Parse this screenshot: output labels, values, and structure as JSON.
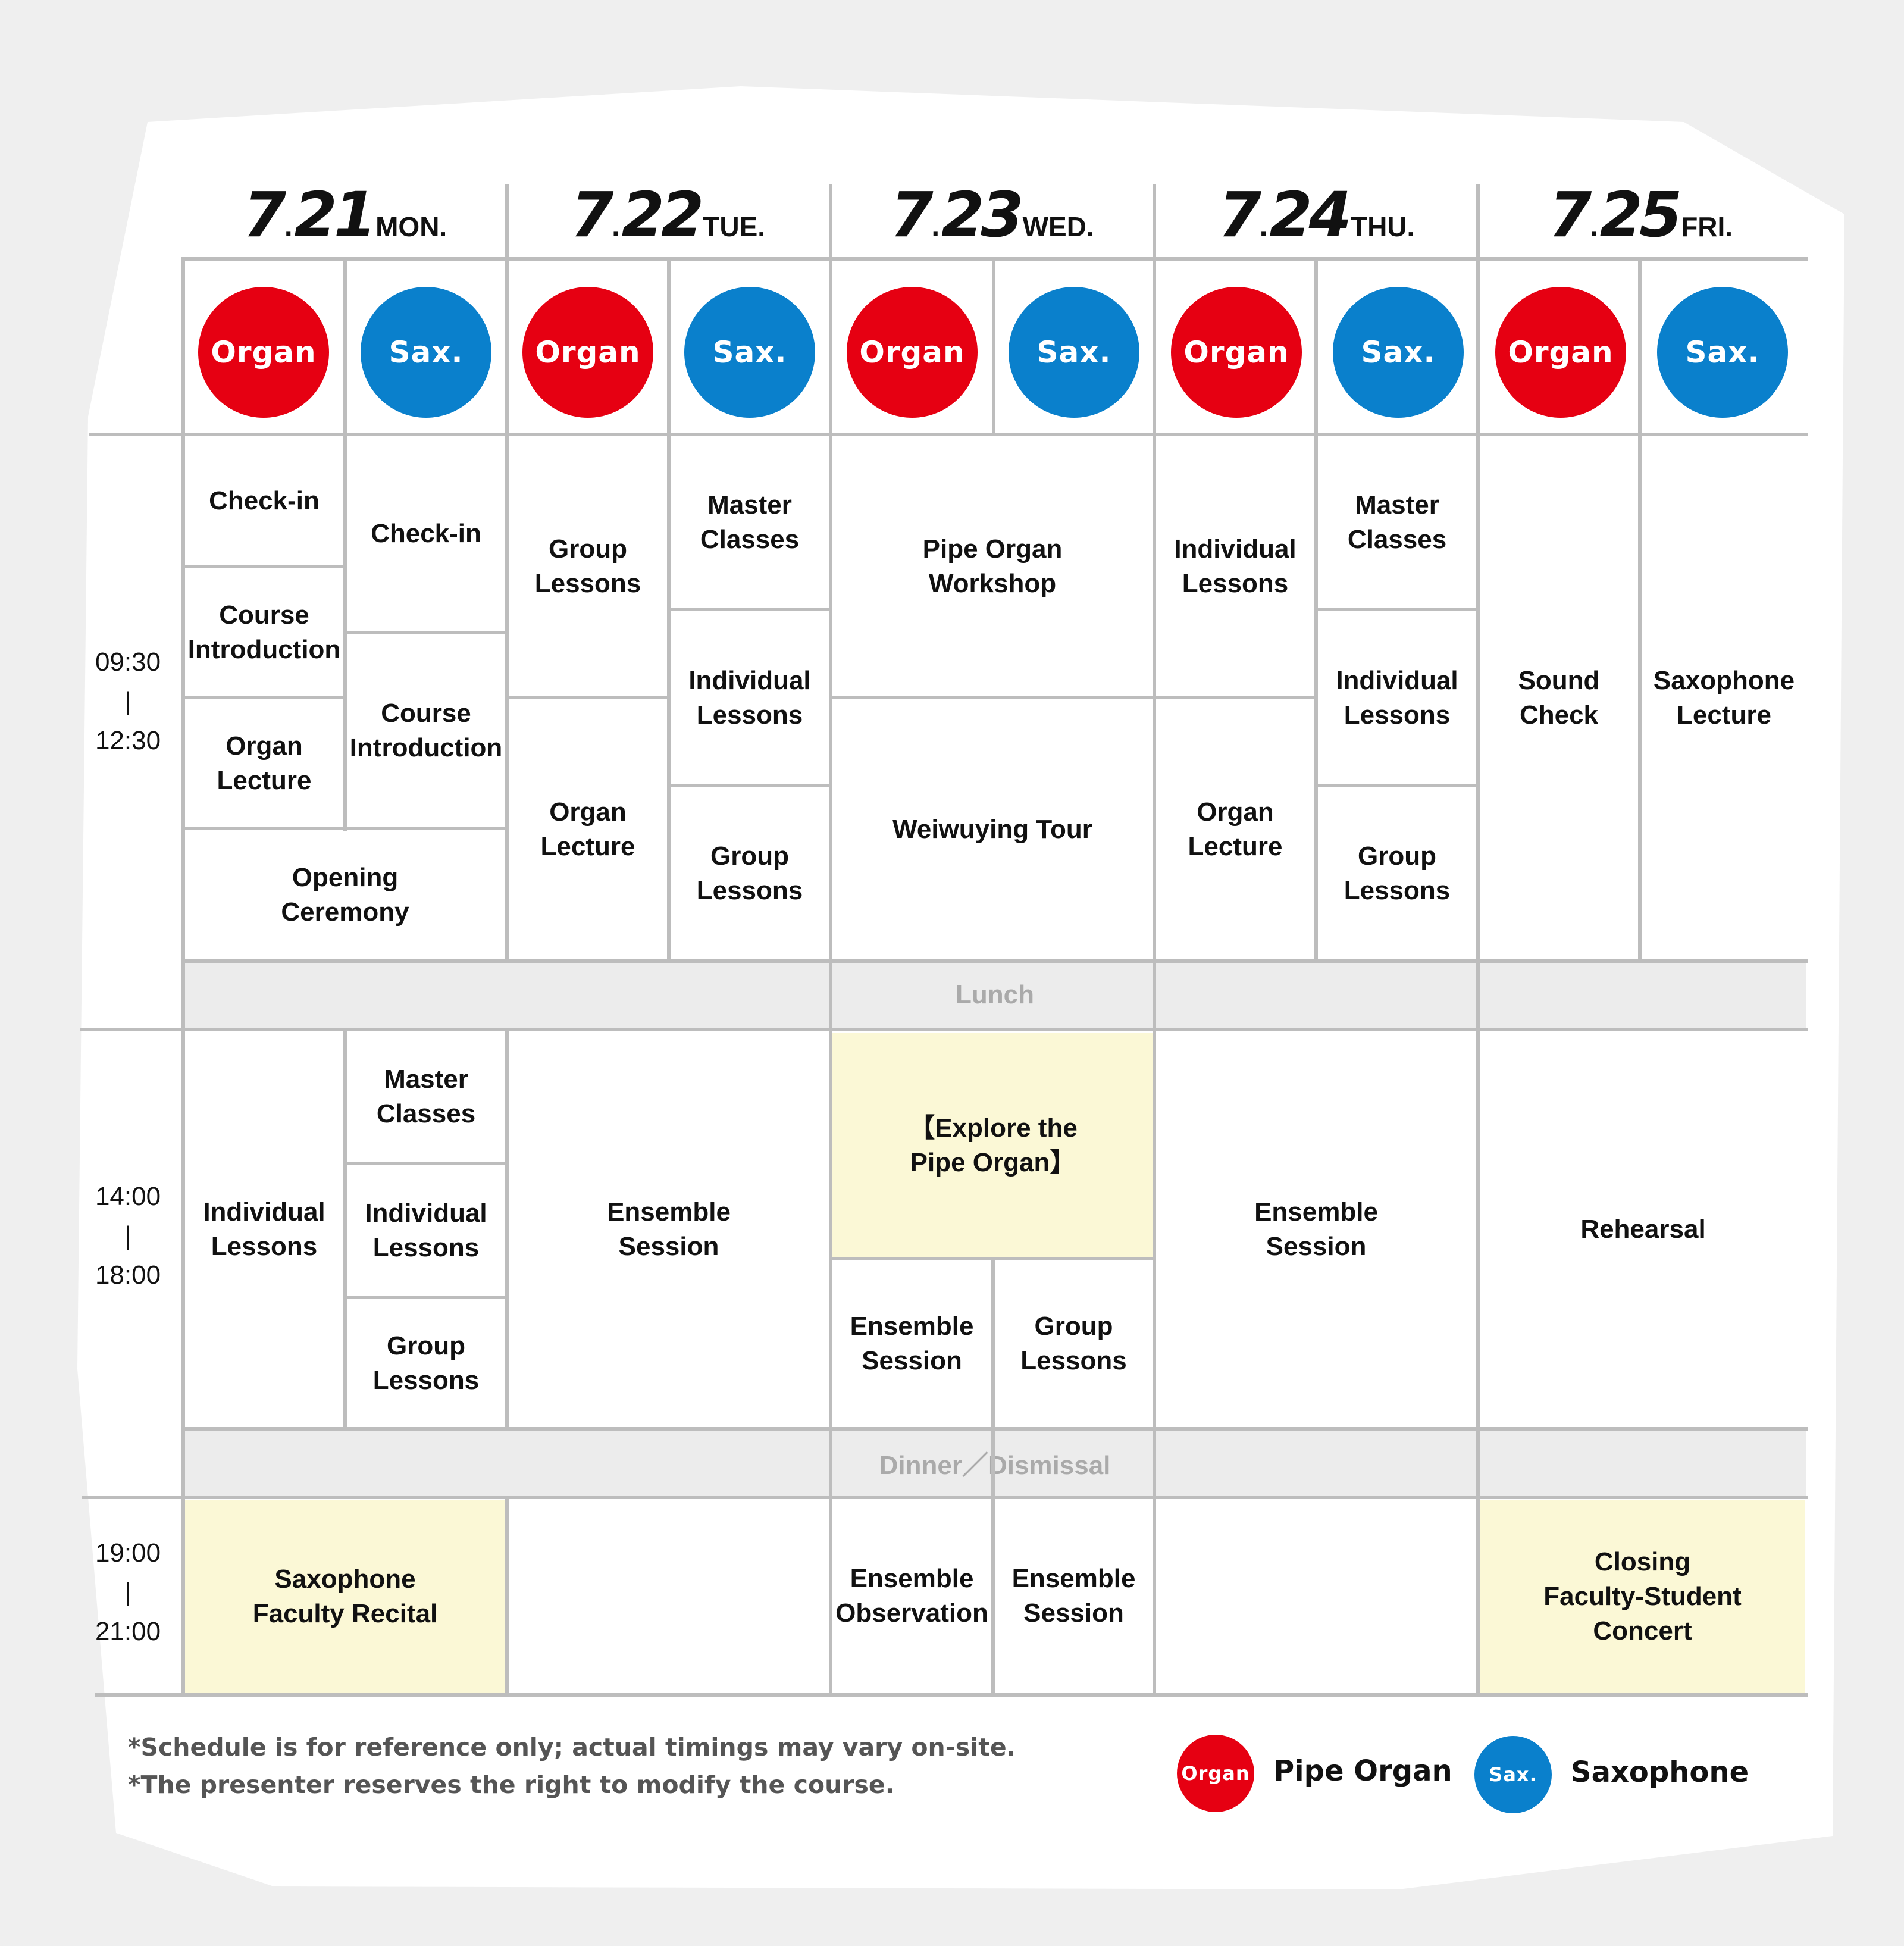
{
  "days": [
    {
      "num": "7",
      "dot": ".",
      "day": "21",
      "weekday": "MON."
    },
    {
      "num": "7",
      "dot": ".",
      "day": "22",
      "weekday": "TUE."
    },
    {
      "num": "7",
      "dot": ".",
      "day": "23",
      "weekday": "WED."
    },
    {
      "num": "7",
      "dot": ".",
      "day": "24",
      "weekday": "THU."
    },
    {
      "num": "7",
      "dot": ".",
      "day": "25",
      "weekday": "FRI."
    }
  ],
  "badges": {
    "organ": "Organ",
    "sax": "Sax."
  },
  "colors": {
    "organ": "#e60012",
    "sax": "#0a80cc",
    "highlight": "#fbf8d6",
    "band": "#ececec",
    "grid": "#bdbdbd"
  },
  "times": {
    "morning": {
      "start": "09:30",
      "sep": "|",
      "end": "12:30"
    },
    "afternoon": {
      "start": "14:00",
      "sep": "|",
      "end": "18:00"
    },
    "evening": {
      "start": "19:00",
      "sep": "|",
      "end": "21:00"
    }
  },
  "bands": {
    "lunch": "Lunch",
    "dinner": "Dinner／Dismissal"
  },
  "sessions": {
    "mon_morning": {
      "organ": [
        "Check-in",
        "Course\nIntroduction",
        "Organ\nLecture"
      ],
      "sax": [
        "Check-in",
        "Course\nIntroduction"
      ],
      "joint": "Opening\nCeremony"
    },
    "tue_morning": {
      "organ": [
        "Group\nLessons",
        "Organ\nLecture"
      ],
      "sax": [
        "Master\nClasses",
        "Individual\nLessons",
        "Group\nLessons"
      ]
    },
    "wed_morning": {
      "joint": [
        "Pipe Organ\nWorkshop",
        "Weiwuying Tour"
      ]
    },
    "thu_morning": {
      "organ": [
        "Individual\nLessons",
        "Organ\nLecture"
      ],
      "sax": [
        "Master\nClasses",
        "Individual\nLessons",
        "Group\nLessons"
      ]
    },
    "fri_morning": {
      "organ": "Sound\nCheck",
      "sax": "Saxophone\nLecture"
    },
    "mon_afternoon": {
      "organ": "Individual\nLessons",
      "sax": [
        "Master\nClasses",
        "Individual\nLessons",
        "Group\nLessons"
      ]
    },
    "tue_afternoon": "Ensemble\nSession",
    "wed_afternoon": {
      "joint": "【Explore the\nPipe Organ】",
      "organ": "Ensemble\nSession",
      "sax": "Group\nLessons"
    },
    "thu_afternoon": "Ensemble\nSession",
    "fri_afternoon": "Rehearsal",
    "mon_evening": "Saxophone\nFaculty Recital",
    "wed_evening": {
      "organ": "Ensemble\nObservation",
      "sax": "Ensemble\nSession"
    },
    "fri_evening": "Closing\nFaculty-Student\nConcert"
  },
  "notes": [
    "*Schedule is for reference only; actual timings may vary on-site.",
    "*The presenter reserves the right to modify the course."
  ],
  "legend": [
    {
      "badge": "Organ",
      "label": "Pipe Organ",
      "color": "#e60012"
    },
    {
      "badge": "Sax.",
      "label": "Saxophone",
      "color": "#0a80cc"
    }
  ]
}
